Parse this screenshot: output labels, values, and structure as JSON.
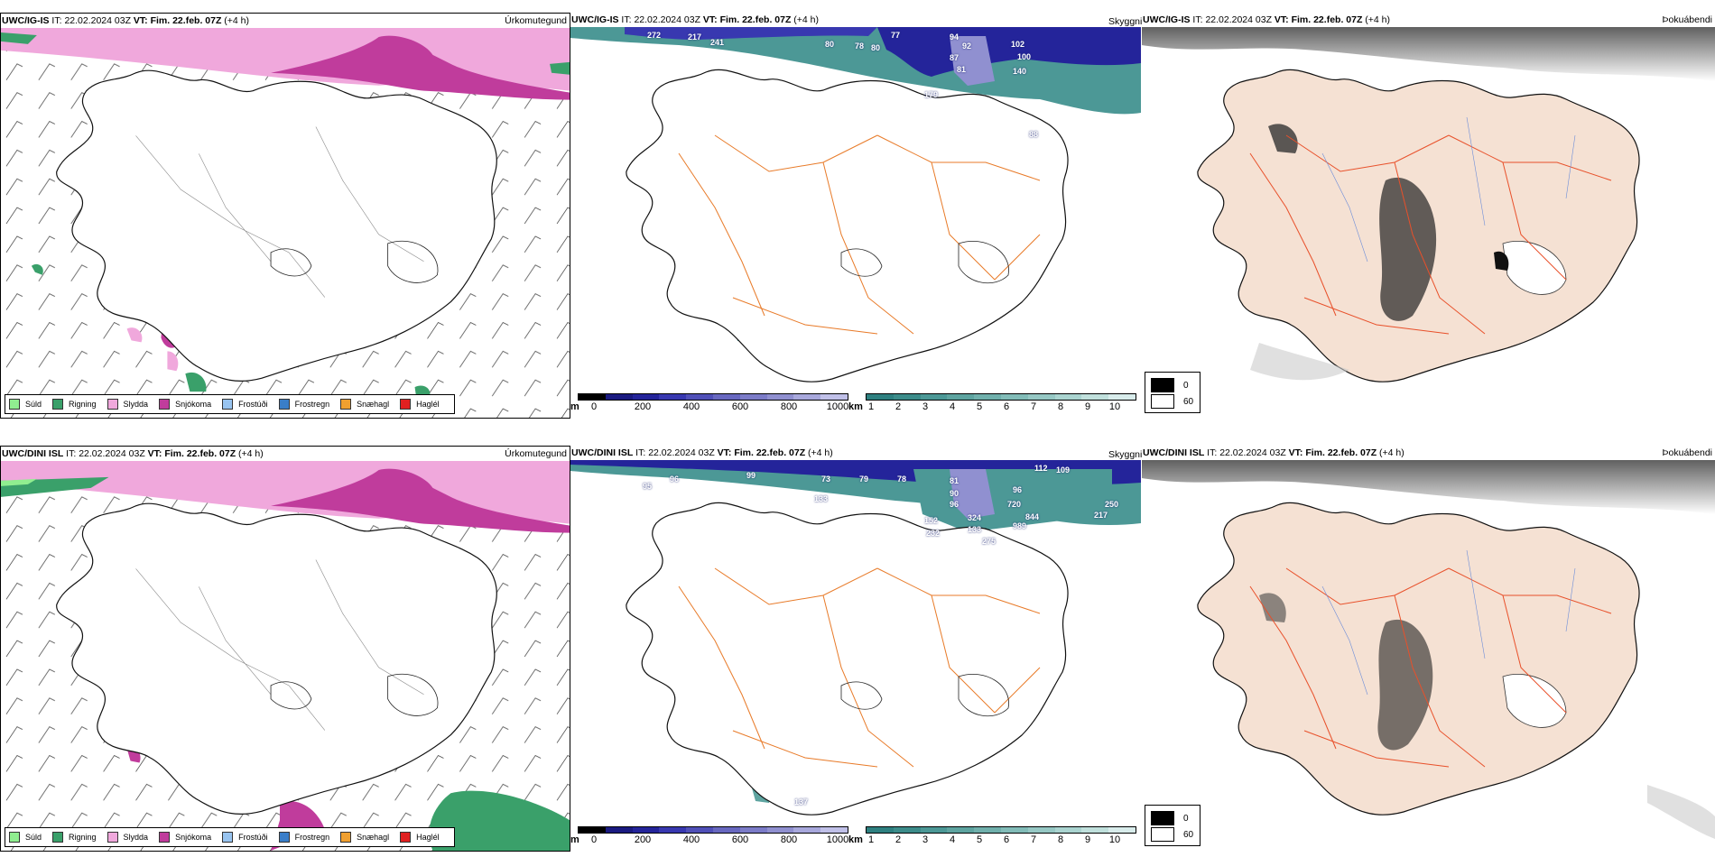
{
  "rows": [
    {
      "model": "UWC/IG-IS",
      "it_label": "IT:",
      "it_value": "22.02.2024 03Z",
      "vt_label": "VT:",
      "vt_value": "Fim. 22.feb. 07Z",
      "lead": "(+4 h)",
      "panels": {
        "precip": "Úrkomutegund",
        "visibility": "Skyggni",
        "fog": "Þokuábendi"
      },
      "vis_labels": [
        "272",
        "217",
        "241",
        "80",
        "78",
        "80",
        "77",
        "94",
        "92",
        "102",
        "87",
        "100",
        "81",
        "140",
        "179",
        "88"
      ]
    },
    {
      "model": "UWC/DINI ISL",
      "it_label": "IT:",
      "it_value": "22.02.2024 03Z",
      "vt_label": "VT:",
      "vt_value": "Fim. 22.feb. 07Z",
      "lead": "(+4 h)",
      "panels": {
        "precip": "Úrkomutegund",
        "visibility": "Skyggni",
        "fog": "Þokuábendi"
      },
      "vis_labels": [
        "95",
        "96",
        "99",
        "73",
        "79",
        "78",
        "81",
        "112",
        "109",
        "133",
        "90",
        "96",
        "96",
        "720",
        "250",
        "844",
        "217",
        "152",
        "324",
        "989",
        "232",
        "133",
        "275",
        "137"
      ]
    }
  ],
  "precip_legend": [
    {
      "label": "Súld",
      "color": "#90ee90"
    },
    {
      "label": "Rigning",
      "color": "#3aa06a"
    },
    {
      "label": "Slydda",
      "color": "#f0a8dc"
    },
    {
      "label": "Snjókoma",
      "color": "#c03c9c"
    },
    {
      "label": "Frostúði",
      "color": "#98c4f0"
    },
    {
      "label": "Frostregn",
      "color": "#3a7ec8"
    },
    {
      "label": "Snæhagl",
      "color": "#f0a030"
    },
    {
      "label": "Haglél",
      "color": "#e02020"
    }
  ],
  "ceiling_scale": {
    "unit": "m",
    "ticks": [
      "0",
      "200",
      "400",
      "600",
      "800",
      "1000"
    ],
    "colors": [
      "#000000",
      "#1a1a80",
      "#24249a",
      "#3838b0",
      "#5050b8",
      "#6868c0",
      "#7c7cc8",
      "#9090d0",
      "#a8a8dc",
      "#c0c0e8"
    ]
  },
  "visibility_scale": {
    "unit": "km",
    "ticks": [
      "1",
      "2",
      "3",
      "4",
      "5",
      "6",
      "7",
      "8",
      "9",
      "10"
    ],
    "colors": [
      "#2e8080",
      "#3c8c8a",
      "#4c9896",
      "#5ea4a0",
      "#70b0ac",
      "#82bcb8",
      "#96c8c4",
      "#aad4d0",
      "#c0e0dc",
      "#d8eceb"
    ]
  },
  "fog_legend": [
    {
      "label": "0",
      "color": "#000000"
    },
    {
      "label": "60",
      "color": "#ffffff"
    }
  ],
  "colors": {
    "land": "#f5e1d3",
    "road": "#e87a28",
    "river": "#6a8cd8",
    "coast": "#111111"
  }
}
